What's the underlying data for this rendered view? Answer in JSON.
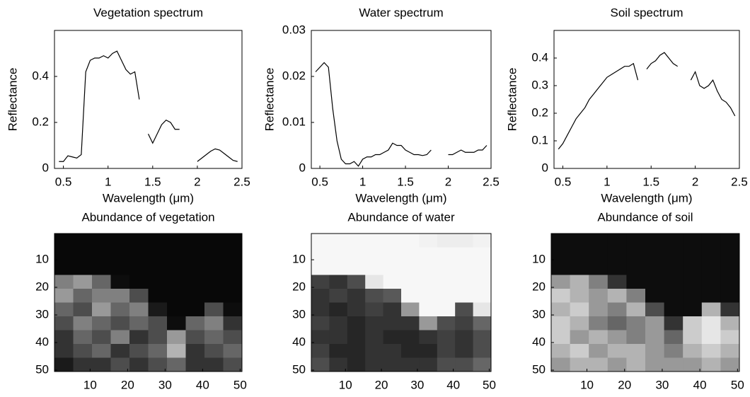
{
  "chart_data": [
    {
      "type": "line",
      "title": "Vegetation spectrum",
      "xlabel": "Wavelength (μm)",
      "ylabel": "Reflectance",
      "color": "#000000",
      "x": [
        0.45,
        0.5,
        0.55,
        0.6,
        0.65,
        0.7,
        0.75,
        0.8,
        0.85,
        0.9,
        0.95,
        1.0,
        1.05,
        1.1,
        1.15,
        1.2,
        1.25,
        1.3,
        1.35,
        1.4,
        1.45,
        1.5,
        1.55,
        1.6,
        1.65,
        1.7,
        1.75,
        1.8,
        1.85,
        1.9,
        1.95,
        2.0,
        2.05,
        2.1,
        2.15,
        2.2,
        2.25,
        2.3,
        2.35,
        2.4,
        2.45
      ],
      "values": [
        0.03,
        0.03,
        0.055,
        0.05,
        0.045,
        0.06,
        0.42,
        0.47,
        0.48,
        0.48,
        0.49,
        0.48,
        0.5,
        0.51,
        0.47,
        0.43,
        0.41,
        0.42,
        0.3,
        null,
        0.15,
        0.11,
        0.15,
        0.19,
        0.21,
        0.2,
        0.17,
        0.17,
        null,
        null,
        null,
        0.03,
        0.045,
        0.06,
        0.075,
        0.085,
        0.08,
        0.065,
        0.05,
        0.035,
        0.03
      ],
      "xlim": [
        0.4,
        2.5
      ],
      "ylim": [
        0,
        0.6
      ],
      "xticks": [
        0.5,
        1,
        1.5,
        2,
        2.5
      ],
      "yticks": [
        0,
        0.2,
        0.4
      ]
    },
    {
      "type": "line",
      "title": "Water spectrum",
      "xlabel": "Wavelength (μm)",
      "ylabel": "Reflectance",
      "color": "#000000",
      "x": [
        0.45,
        0.5,
        0.55,
        0.6,
        0.65,
        0.7,
        0.75,
        0.8,
        0.85,
        0.9,
        0.95,
        1.0,
        1.05,
        1.1,
        1.15,
        1.2,
        1.25,
        1.3,
        1.35,
        1.4,
        1.45,
        1.5,
        1.55,
        1.6,
        1.65,
        1.7,
        1.75,
        1.8,
        1.85,
        1.9,
        1.95,
        2.0,
        2.05,
        2.1,
        2.15,
        2.2,
        2.25,
        2.3,
        2.35,
        2.4,
        2.45
      ],
      "values": [
        0.021,
        0.022,
        0.023,
        0.022,
        0.013,
        0.006,
        0.002,
        0.001,
        0.001,
        0.0015,
        0.0005,
        0.002,
        0.0025,
        0.0025,
        0.003,
        0.003,
        0.0035,
        0.004,
        0.0055,
        0.005,
        0.005,
        0.004,
        0.0035,
        0.003,
        0.003,
        0.0028,
        0.003,
        0.004,
        null,
        null,
        null,
        0.003,
        0.003,
        0.0035,
        0.004,
        0.0035,
        0.0035,
        0.0035,
        0.004,
        0.004,
        0.005
      ],
      "xlim": [
        0.4,
        2.5
      ],
      "ylim": [
        0,
        0.03
      ],
      "xticks": [
        0.5,
        1,
        1.5,
        2,
        2.5
      ],
      "yticks": [
        0,
        0.01,
        0.02,
        0.03
      ]
    },
    {
      "type": "line",
      "title": "Soil spectrum",
      "xlabel": "Wavelength (μm)",
      "ylabel": "Reflectance",
      "color": "#000000",
      "x": [
        0.45,
        0.5,
        0.55,
        0.6,
        0.65,
        0.7,
        0.75,
        0.8,
        0.85,
        0.9,
        0.95,
        1.0,
        1.05,
        1.1,
        1.15,
        1.2,
        1.25,
        1.3,
        1.35,
        1.4,
        1.45,
        1.5,
        1.55,
        1.6,
        1.65,
        1.7,
        1.75,
        1.8,
        1.85,
        1.9,
        1.95,
        2.0,
        2.05,
        2.1,
        2.15,
        2.2,
        2.25,
        2.3,
        2.35,
        2.4,
        2.45
      ],
      "values": [
        0.07,
        0.09,
        0.12,
        0.15,
        0.18,
        0.2,
        0.22,
        0.25,
        0.27,
        0.29,
        0.31,
        0.33,
        0.34,
        0.35,
        0.36,
        0.37,
        0.37,
        0.38,
        0.32,
        null,
        0.36,
        0.38,
        0.39,
        0.41,
        0.42,
        0.4,
        0.38,
        0.37,
        null,
        null,
        0.32,
        0.35,
        0.3,
        0.29,
        0.3,
        0.32,
        0.28,
        0.25,
        0.24,
        0.22,
        0.19
      ],
      "xlim": [
        0.4,
        2.5
      ],
      "ylim": [
        0,
        0.5
      ],
      "xticks": [
        0.5,
        1,
        1.5,
        2,
        2.5
      ],
      "yticks": [
        0,
        0.1,
        0.2,
        0.3,
        0.4
      ]
    },
    {
      "type": "heatmap",
      "title": "Abundance of vegetation",
      "colormap": "gray",
      "vlim": [
        0,
        1
      ],
      "xlim": [
        0.5,
        50.5
      ],
      "ylim": [
        50.5,
        0.5
      ],
      "xticks": [
        10,
        20,
        30,
        40,
        50
      ],
      "yticks": [
        10,
        20,
        30,
        40,
        50
      ],
      "values": [
        [
          0.03,
          0.03,
          0.03,
          0.03,
          0.03,
          0.03,
          0.03,
          0.03,
          0.03,
          0.03
        ],
        [
          0.03,
          0.03,
          0.03,
          0.03,
          0.03,
          0.03,
          0.03,
          0.03,
          0.03,
          0.03
        ],
        [
          0.03,
          0.03,
          0.03,
          0.03,
          0.03,
          0.03,
          0.03,
          0.03,
          0.03,
          0.03
        ],
        [
          0.5,
          0.6,
          0.4,
          0.05,
          0.03,
          0.03,
          0.03,
          0.03,
          0.03,
          0.03
        ],
        [
          0.6,
          0.4,
          0.5,
          0.5,
          0.3,
          0.03,
          0.03,
          0.03,
          0.03,
          0.03
        ],
        [
          0.4,
          0.3,
          0.6,
          0.4,
          0.5,
          0.1,
          0.03,
          0.03,
          0.3,
          0.05
        ],
        [
          0.3,
          0.5,
          0.4,
          0.3,
          0.4,
          0.3,
          0.05,
          0.4,
          0.5,
          0.2
        ],
        [
          0.2,
          0.4,
          0.3,
          0.5,
          0.2,
          0.3,
          0.6,
          0.3,
          0.4,
          0.3
        ],
        [
          0.2,
          0.3,
          0.4,
          0.2,
          0.3,
          0.4,
          0.7,
          0.2,
          0.3,
          0.4
        ],
        [
          0.1,
          0.2,
          0.2,
          0.3,
          0.2,
          0.3,
          0.4,
          0.2,
          0.2,
          0.3
        ]
      ]
    },
    {
      "type": "heatmap",
      "title": "Abundance of water",
      "colormap": "gray",
      "vlim": [
        0,
        1
      ],
      "xlim": [
        0.5,
        50.5
      ],
      "ylim": [
        50.5,
        0.5
      ],
      "xticks": [
        10,
        20,
        30,
        40,
        50
      ],
      "yticks": [
        10,
        20,
        30,
        40,
        50
      ],
      "values": [
        [
          0.97,
          0.97,
          0.97,
          0.97,
          0.97,
          0.97,
          0.95,
          0.93,
          0.93,
          0.95
        ],
        [
          0.97,
          0.97,
          0.97,
          0.97,
          0.97,
          0.97,
          0.97,
          0.97,
          0.97,
          0.97
        ],
        [
          0.97,
          0.97,
          0.97,
          0.97,
          0.97,
          0.97,
          0.97,
          0.97,
          0.97,
          0.97
        ],
        [
          0.25,
          0.2,
          0.3,
          0.9,
          0.97,
          0.97,
          0.97,
          0.97,
          0.97,
          0.97
        ],
        [
          0.2,
          0.25,
          0.2,
          0.3,
          0.35,
          0.97,
          0.97,
          0.97,
          0.97,
          0.97
        ],
        [
          0.2,
          0.15,
          0.2,
          0.25,
          0.2,
          0.6,
          0.97,
          0.97,
          0.3,
          0.9
        ],
        [
          0.25,
          0.2,
          0.15,
          0.2,
          0.2,
          0.2,
          0.6,
          0.3,
          0.25,
          0.4
        ],
        [
          0.2,
          0.2,
          0.15,
          0.2,
          0.15,
          0.15,
          0.2,
          0.25,
          0.2,
          0.3
        ],
        [
          0.25,
          0.15,
          0.15,
          0.2,
          0.2,
          0.15,
          0.15,
          0.25,
          0.2,
          0.3
        ],
        [
          0.3,
          0.2,
          0.15,
          0.2,
          0.2,
          0.2,
          0.2,
          0.3,
          0.3,
          0.4
        ]
      ]
    },
    {
      "type": "heatmap",
      "title": "Abundance of soil",
      "colormap": "gray",
      "vlim": [
        0,
        1
      ],
      "xlim": [
        0.5,
        50.5
      ],
      "ylim": [
        50.5,
        0.5
      ],
      "xticks": [
        10,
        20,
        30,
        40,
        50
      ],
      "yticks": [
        10,
        20,
        30,
        40,
        50
      ],
      "values": [
        [
          0.05,
          0.05,
          0.05,
          0.05,
          0.05,
          0.05,
          0.05,
          0.05,
          0.05,
          0.05
        ],
        [
          0.05,
          0.05,
          0.05,
          0.05,
          0.05,
          0.05,
          0.05,
          0.05,
          0.05,
          0.05
        ],
        [
          0.05,
          0.05,
          0.05,
          0.05,
          0.05,
          0.05,
          0.05,
          0.05,
          0.05,
          0.05
        ],
        [
          0.6,
          0.7,
          0.5,
          0.2,
          0.05,
          0.05,
          0.05,
          0.05,
          0.05,
          0.05
        ],
        [
          0.8,
          0.7,
          0.6,
          0.7,
          0.5,
          0.05,
          0.05,
          0.05,
          0.05,
          0.05
        ],
        [
          0.7,
          0.8,
          0.6,
          0.5,
          0.7,
          0.3,
          0.05,
          0.05,
          0.7,
          0.2
        ],
        [
          0.8,
          0.7,
          0.5,
          0.4,
          0.5,
          0.6,
          0.2,
          0.8,
          0.9,
          0.7
        ],
        [
          0.8,
          0.6,
          0.7,
          0.6,
          0.5,
          0.6,
          0.4,
          0.8,
          0.9,
          0.8
        ],
        [
          0.7,
          0.8,
          0.6,
          0.7,
          0.7,
          0.6,
          0.5,
          0.7,
          0.8,
          0.7
        ],
        [
          0.6,
          0.7,
          0.7,
          0.6,
          0.7,
          0.6,
          0.6,
          0.6,
          0.7,
          0.6
        ]
      ]
    }
  ]
}
